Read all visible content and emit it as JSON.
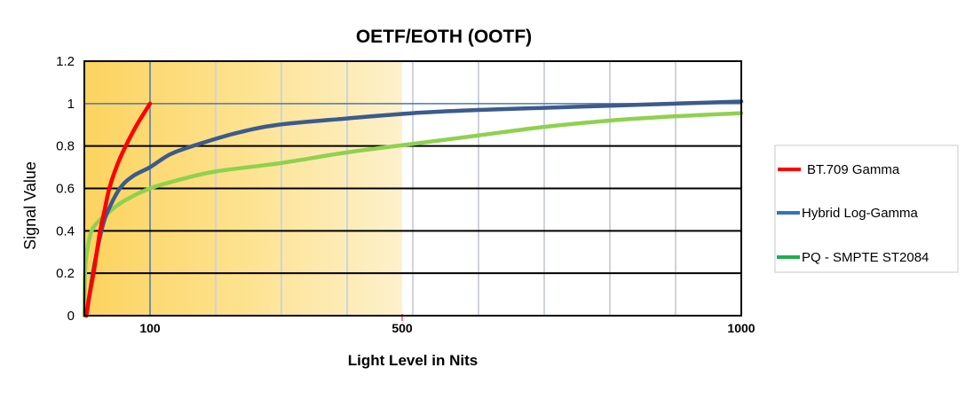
{
  "chart_data": {
    "type": "line",
    "title": "OETF/EOTH  (OOTF)",
    "xlabel": "Light Level in Nits",
    "ylabel": "Signal Value",
    "xlim": [
      0,
      1000
    ],
    "ylim": [
      0,
      1.2
    ],
    "x_ticks": [
      100,
      500,
      1000
    ],
    "y_ticks": [
      "0",
      "0.2",
      "0.4",
      "0.6",
      "0.8",
      "1",
      "1.2"
    ],
    "y_tick_values": [
      0,
      0.2,
      0.4,
      0.6,
      0.8,
      1,
      1.2
    ],
    "grid": true,
    "highlight_range": [
      0,
      500
    ],
    "legend_position": "right",
    "series": [
      {
        "name": "BT.709  Gamma",
        "color": "#ff0000",
        "legend_color": "#ff0000",
        "x": [
          3,
          8,
          14,
          19,
          24,
          31,
          38,
          50,
          63,
          80,
          100
        ],
        "y": [
          0,
          0.1,
          0.2,
          0.3,
          0.4,
          0.5,
          0.6,
          0.71,
          0.8,
          0.9,
          1.0
        ]
      },
      {
        "name": "Hybrid Log-Gamma",
        "color": "#3b5b8c",
        "legend_color": "#2f75c0",
        "x": [
          3,
          8,
          13,
          19,
          26,
          34,
          54,
          75,
          100,
          130,
          165,
          230,
          295,
          400,
          500,
          600,
          700,
          800,
          900,
          1000
        ],
        "y": [
          0,
          0.1,
          0.2,
          0.3,
          0.4,
          0.48,
          0.6,
          0.66,
          0.7,
          0.76,
          0.8,
          0.86,
          0.9,
          0.93,
          0.955,
          0.97,
          0.98,
          0.99,
          1.0,
          1.01
        ]
      },
      {
        "name": "PQ - SMPTE ST2084",
        "color": "#8fd14f",
        "legend_color": "#1fae4f",
        "x": [
          0,
          0.5,
          1,
          3,
          6,
          11,
          20,
          34,
          60,
          100,
          150,
          200,
          300,
          400,
          500,
          600,
          700,
          800,
          900,
          1000
        ],
        "y": [
          0,
          0.1,
          0.2,
          0.28,
          0.34,
          0.4,
          0.44,
          0.48,
          0.54,
          0.6,
          0.645,
          0.68,
          0.72,
          0.77,
          0.81,
          0.85,
          0.89,
          0.92,
          0.94,
          0.955
        ]
      }
    ]
  }
}
